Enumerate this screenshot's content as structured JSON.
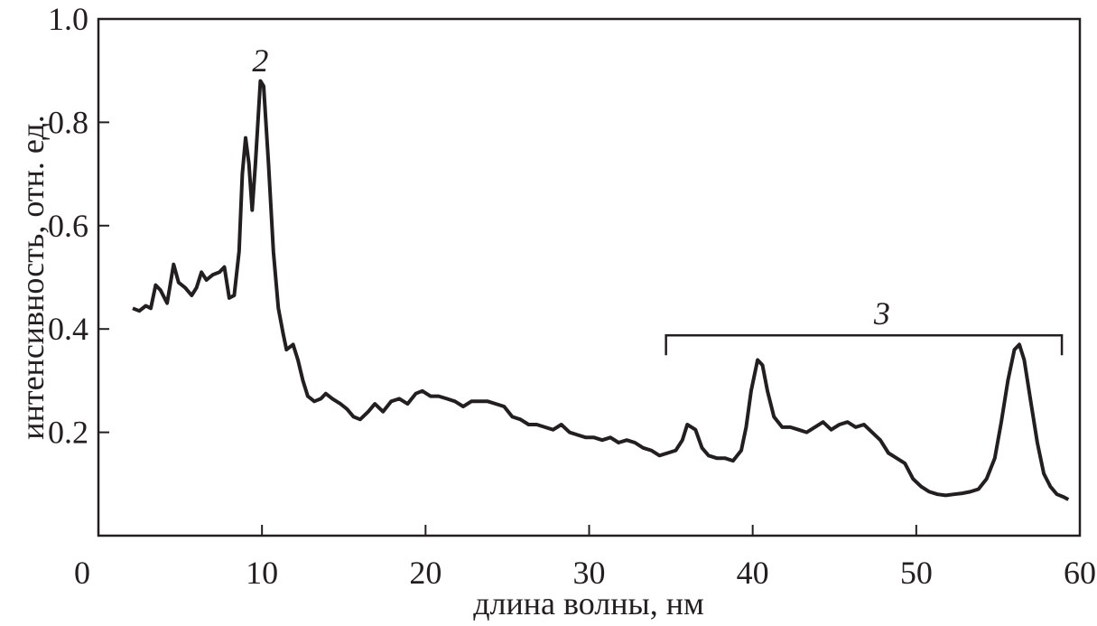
{
  "chart_data": {
    "type": "line",
    "title": "",
    "xlabel": "длина волны, нм",
    "ylabel": "интенсивность, отн. ед.",
    "xlim": [
      0,
      60
    ],
    "ylim": [
      0,
      1.0
    ],
    "xticks": [
      "0",
      "10",
      "20",
      "30",
      "40",
      "50",
      "60"
    ],
    "yticks": [
      "0.2",
      "0.4",
      "0.6",
      "0.8",
      "1.0"
    ],
    "grid": false,
    "line_color": "#231f20",
    "annotations": [
      {
        "text": "2",
        "x": 9.9,
        "y": 0.92
      },
      {
        "text": "3",
        "bracket_from": 34.7,
        "bracket_to": 58.9,
        "y": 0.4
      }
    ],
    "series": [
      {
        "x": [
          2.1,
          2.5,
          2.9,
          3.2,
          3.5,
          3.8,
          4.2,
          4.6,
          4.9,
          5.3,
          5.7,
          6.0,
          6.3,
          6.6,
          7.0,
          7.4,
          7.7,
          8.0,
          8.3,
          8.6,
          8.8,
          9.0,
          9.2,
          9.4,
          9.6,
          9.9,
          10.1,
          10.4,
          10.7,
          11.0,
          11.3,
          11.5,
          11.9,
          12.2,
          12.5,
          12.8,
          13.2,
          13.6,
          13.9,
          14.3,
          14.8,
          15.2,
          15.6,
          16.0,
          16.5,
          16.9,
          17.4,
          17.9,
          18.4,
          18.9,
          19.4,
          19.8,
          20.3,
          20.8,
          21.3,
          21.8,
          22.3,
          22.8,
          23.3,
          23.8,
          24.3,
          24.8,
          25.3,
          25.8,
          26.3,
          26.8,
          27.3,
          27.8,
          28.3,
          28.8,
          29.3,
          29.8,
          30.3,
          30.8,
          31.3,
          31.8,
          32.3,
          32.8,
          33.3,
          33.8,
          34.3,
          34.8,
          35.3,
          35.7,
          36.0,
          36.5,
          36.9,
          37.3,
          37.8,
          38.3,
          38.8,
          39.3,
          39.6,
          39.9,
          40.3,
          40.6,
          40.9,
          41.3,
          41.8,
          42.3,
          42.8,
          43.3,
          43.8,
          44.3,
          44.8,
          45.3,
          45.8,
          46.3,
          46.8,
          47.3,
          47.8,
          48.3,
          48.8,
          49.3,
          49.8,
          50.3,
          50.8,
          51.3,
          51.8,
          52.3,
          52.8,
          53.3,
          53.8,
          54.3,
          54.8,
          55.2,
          55.6,
          56.0,
          56.3,
          56.6,
          57.0,
          57.4,
          57.8,
          58.2,
          58.6,
          59.0,
          59.3
        ],
        "y": [
          0.44,
          0.435,
          0.445,
          0.44,
          0.485,
          0.475,
          0.45,
          0.525,
          0.49,
          0.48,
          0.465,
          0.48,
          0.51,
          0.495,
          0.505,
          0.51,
          0.52,
          0.46,
          0.465,
          0.55,
          0.7,
          0.77,
          0.72,
          0.63,
          0.72,
          0.88,
          0.87,
          0.72,
          0.55,
          0.44,
          0.39,
          0.36,
          0.37,
          0.34,
          0.3,
          0.27,
          0.26,
          0.265,
          0.275,
          0.265,
          0.255,
          0.245,
          0.23,
          0.225,
          0.24,
          0.255,
          0.24,
          0.26,
          0.265,
          0.255,
          0.275,
          0.28,
          0.27,
          0.27,
          0.265,
          0.26,
          0.25,
          0.26,
          0.26,
          0.26,
          0.255,
          0.25,
          0.23,
          0.225,
          0.215,
          0.215,
          0.21,
          0.205,
          0.215,
          0.2,
          0.195,
          0.19,
          0.19,
          0.185,
          0.19,
          0.18,
          0.185,
          0.18,
          0.17,
          0.165,
          0.155,
          0.16,
          0.165,
          0.185,
          0.215,
          0.205,
          0.17,
          0.155,
          0.15,
          0.15,
          0.145,
          0.165,
          0.21,
          0.28,
          0.34,
          0.33,
          0.28,
          0.23,
          0.21,
          0.21,
          0.205,
          0.2,
          0.21,
          0.22,
          0.205,
          0.215,
          0.22,
          0.21,
          0.215,
          0.2,
          0.185,
          0.16,
          0.15,
          0.14,
          0.11,
          0.095,
          0.085,
          0.08,
          0.078,
          0.08,
          0.082,
          0.085,
          0.09,
          0.11,
          0.15,
          0.22,
          0.3,
          0.36,
          0.37,
          0.34,
          0.26,
          0.18,
          0.12,
          0.095,
          0.08,
          0.075,
          0.07
        ]
      }
    ]
  }
}
